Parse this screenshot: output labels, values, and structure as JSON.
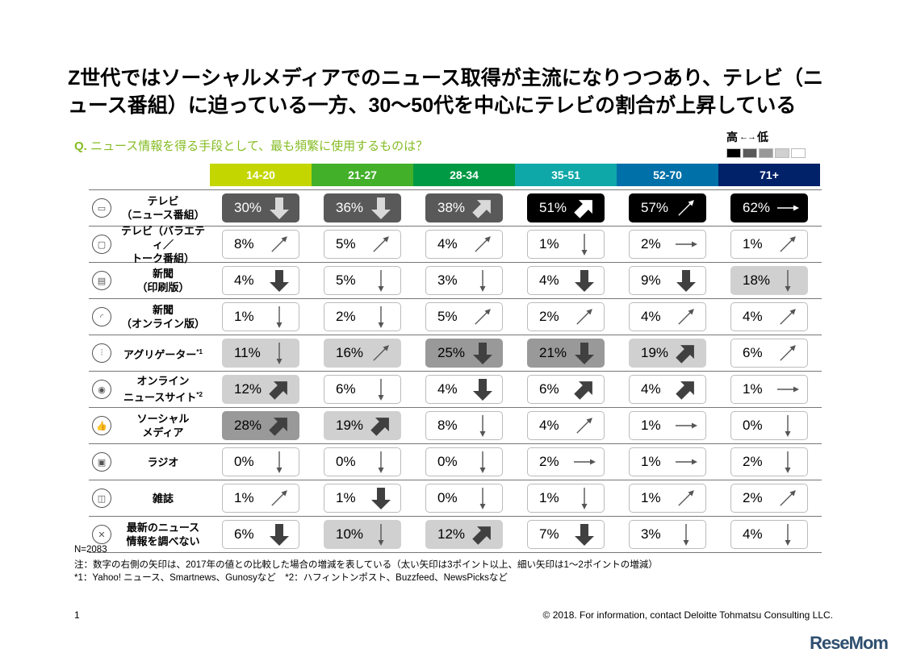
{
  "title": "Z世代ではソーシャルメディアでのニュース取得が主流になりつつあり、テレビ（ニュース番組）に迫っている一方、30〜50代を中心にテレビの割合が上昇している",
  "question": {
    "prefix": "Q.",
    "text": "ニュース情報を得る手段として、最も頻繁に使用するものは？"
  },
  "legend": {
    "high": "高",
    "low": "低",
    "arrow": "←→",
    "shades": [
      "#000000",
      "#595959",
      "#999999",
      "#d0d0d0",
      "#ffffff"
    ]
  },
  "columns": [
    {
      "label": "14-20",
      "color": "#c4d600"
    },
    {
      "label": "21-27",
      "color": "#43b02a"
    },
    {
      "label": "28-34",
      "color": "#009a44"
    },
    {
      "label": "35-51",
      "color": "#0fa8a8"
    },
    {
      "label": "52-70",
      "color": "#0070a8"
    },
    {
      "label": "71+",
      "color": "#012169"
    }
  ],
  "rows": [
    {
      "label": "テレビ\n（ニュース番組）",
      "icon": "tv-icon",
      "cells": [
        [
          "30%",
          1,
          "down",
          "fat"
        ],
        [
          "36%",
          1,
          "down",
          "fat"
        ],
        [
          "38%",
          1,
          "up-right",
          "fat"
        ],
        [
          "51%",
          0,
          "up-right",
          "fat"
        ],
        [
          "57%",
          0,
          "up-right",
          "thin"
        ],
        [
          "62%",
          0,
          "right",
          "thin"
        ]
      ]
    },
    {
      "label": "テレビ（バラエティ／\nトーク番組）",
      "icon": "chat-icon",
      "cells": [
        [
          "8%",
          4,
          "up-right",
          "thin"
        ],
        [
          "5%",
          4,
          "up-right",
          "thin"
        ],
        [
          "4%",
          4,
          "up-right",
          "thin"
        ],
        [
          "1%",
          4,
          "down",
          "thin"
        ],
        [
          "2%",
          4,
          "right",
          "thin"
        ],
        [
          "1%",
          4,
          "up-right",
          "thin"
        ]
      ]
    },
    {
      "label": "新聞\n（印刷版）",
      "icon": "newspaper-icon",
      "cells": [
        [
          "4%",
          4,
          "down",
          "fat"
        ],
        [
          "5%",
          4,
          "down",
          "thin"
        ],
        [
          "3%",
          4,
          "down",
          "thin"
        ],
        [
          "4%",
          4,
          "down",
          "fat"
        ],
        [
          "9%",
          4,
          "down",
          "fat"
        ],
        [
          "18%",
          3,
          "down",
          "thin"
        ]
      ]
    },
    {
      "label": "新聞\n（オンライン版）",
      "icon": "rss-icon",
      "cells": [
        [
          "1%",
          4,
          "down",
          "thin"
        ],
        [
          "2%",
          4,
          "down",
          "thin"
        ],
        [
          "5%",
          4,
          "up-right",
          "thin"
        ],
        [
          "2%",
          4,
          "up-right",
          "thin"
        ],
        [
          "4%",
          4,
          "up-right",
          "thin"
        ],
        [
          "4%",
          4,
          "up-right",
          "thin"
        ]
      ]
    },
    {
      "label": "アグリゲーター",
      "sup": "*1",
      "icon": "sliders-icon",
      "cells": [
        [
          "11%",
          3,
          "down",
          "thin"
        ],
        [
          "16%",
          3,
          "up-right",
          "thin"
        ],
        [
          "25%",
          2,
          "down",
          "fat"
        ],
        [
          "21%",
          2,
          "down",
          "fat"
        ],
        [
          "19%",
          3,
          "up-right",
          "fat"
        ],
        [
          "6%",
          4,
          "up-right",
          "thin"
        ]
      ]
    },
    {
      "label": "オンライン\nニュースサイト",
      "sup": "*2",
      "icon": "broadcast-icon",
      "cells": [
        [
          "12%",
          3,
          "up-right",
          "fat"
        ],
        [
          "6%",
          4,
          "down",
          "thin"
        ],
        [
          "4%",
          4,
          "down",
          "fat"
        ],
        [
          "6%",
          4,
          "up-right",
          "fat"
        ],
        [
          "4%",
          4,
          "up-right",
          "fat"
        ],
        [
          "1%",
          4,
          "right",
          "thin"
        ]
      ]
    },
    {
      "label": "ソーシャル\nメディア",
      "icon": "thumbs-up-icon",
      "cells": [
        [
          "28%",
          2,
          "up-right",
          "fat"
        ],
        [
          "19%",
          3,
          "up-right",
          "fat"
        ],
        [
          "8%",
          4,
          "down",
          "thin"
        ],
        [
          "4%",
          4,
          "up-right",
          "thin"
        ],
        [
          "1%",
          4,
          "right",
          "thin"
        ],
        [
          "0%",
          4,
          "down",
          "thin"
        ]
      ]
    },
    {
      "label": "ラジオ",
      "icon": "radio-icon",
      "cells": [
        [
          "0%",
          4,
          "down",
          "thin"
        ],
        [
          "0%",
          4,
          "down",
          "thin"
        ],
        [
          "0%",
          4,
          "down",
          "thin"
        ],
        [
          "2%",
          4,
          "right",
          "thin"
        ],
        [
          "1%",
          4,
          "right",
          "thin"
        ],
        [
          "2%",
          4,
          "down",
          "thin"
        ]
      ]
    },
    {
      "label": "雑誌",
      "icon": "book-icon",
      "cells": [
        [
          "1%",
          4,
          "up-right",
          "thin"
        ],
        [
          "1%",
          4,
          "down",
          "fat"
        ],
        [
          "0%",
          4,
          "down",
          "thin"
        ],
        [
          "1%",
          4,
          "down",
          "thin"
        ],
        [
          "1%",
          4,
          "up-right",
          "thin"
        ],
        [
          "2%",
          4,
          "up-right",
          "thin"
        ]
      ]
    },
    {
      "label": "最新のニュース\n情報を調べない",
      "icon": "x-icon",
      "cells": [
        [
          "6%",
          4,
          "down",
          "fat"
        ],
        [
          "10%",
          3,
          "down",
          "thin"
        ],
        [
          "12%",
          3,
          "up-right",
          "fat"
        ],
        [
          "7%",
          4,
          "down",
          "fat"
        ],
        [
          "3%",
          4,
          "down",
          "thin"
        ],
        [
          "4%",
          4,
          "down",
          "thin"
        ]
      ]
    }
  ],
  "footnotes": {
    "n": "N=2083",
    "note": "注：数字の右側の矢印は、2017年の値との比較した場合の増減を表している（太い矢印は3ポイント以上、細い矢印は1〜2ポイントの増減）",
    "refs": "*1：Yahoo! ニュース、Smartnews、Gunosyなど　*2：ハフィントンポスト、Buzzfeed、NewsPicksなど"
  },
  "page_number": "1",
  "copyright": "© 2018. For information, contact Deloitte Tohmatsu Consulting LLC.",
  "watermark": "ReseMom"
}
